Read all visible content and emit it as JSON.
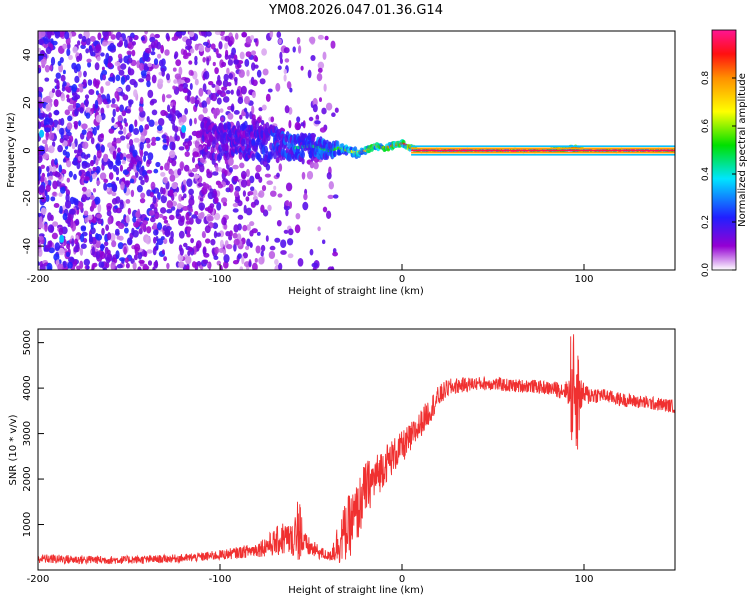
{
  "title": "YM08.2026.047.01.36.G14",
  "chart_data": [
    {
      "type": "heatmap",
      "name": "spectrogram",
      "xlabel": "Height of straight line (km)",
      "ylabel": "Frequency (Hz)",
      "xlim": [
        -200,
        150
      ],
      "ylim": [
        -50,
        50
      ],
      "xticks": [
        "-200",
        "-100",
        "0",
        "100"
      ],
      "xtick_values": [
        -200,
        -100,
        0,
        100
      ],
      "yticks": [
        "-40",
        "-20",
        "0",
        "20",
        "40"
      ],
      "ytick_values": [
        -40,
        -20,
        0,
        20,
        40
      ],
      "colorbar": {
        "label": "Normalized spectral amplitude",
        "range": [
          0,
          1
        ],
        "ticks": [
          "0.0",
          "0.2",
          "0.4",
          "0.6",
          "0.8"
        ],
        "tick_values": [
          0.0,
          0.2,
          0.4,
          0.6,
          0.8
        ]
      },
      "ridge": {
        "x": [
          -200,
          -150,
          -100,
          -80,
          -70,
          -60,
          -50,
          -40,
          -35,
          -30,
          -25,
          -20,
          -15,
          -10,
          -5,
          0,
          5,
          10,
          20,
          40,
          60,
          80,
          95,
          100,
          150
        ],
        "freq": [
          6,
          5,
          4,
          4,
          3,
          1,
          2,
          0,
          1,
          0,
          -1,
          0,
          2,
          1,
          2,
          3,
          1,
          0,
          0,
          0,
          0,
          0,
          1,
          0,
          0
        ],
        "amplitude": [
          0.25,
          0.25,
          0.3,
          0.35,
          0.4,
          0.45,
          0.45,
          0.5,
          0.55,
          0.6,
          0.7,
          0.75,
          0.8,
          0.8,
          0.85,
          0.9,
          0.95,
          1.0,
          1.0,
          1.0,
          1.0,
          1.0,
          0.9,
          1.0,
          1.0
        ],
        "spread_hz": [
          45,
          45,
          30,
          25,
          12,
          10,
          8,
          6,
          4,
          3,
          3,
          2,
          2,
          2,
          2,
          2,
          2,
          1,
          1,
          1,
          1,
          1,
          2,
          1,
          1
        ]
      },
      "noise_extent_x": [
        -200,
        -40
      ],
      "spikes": [
        {
          "x": -198,
          "freq": 7
        },
        {
          "x": -187,
          "freq": -37
        },
        {
          "x": -120,
          "freq": 9
        }
      ]
    },
    {
      "type": "line",
      "name": "snr",
      "xlabel": "Height of straight line (km)",
      "ylabel": "SNR (10 * v/v)",
      "xlim": [
        -200,
        150
      ],
      "ylim": [
        0,
        5300
      ],
      "xticks": [
        "-200",
        "-100",
        "0",
        "100"
      ],
      "xtick_values": [
        -200,
        -100,
        0,
        100
      ],
      "yticks": [
        "1000",
        "2000",
        "3000",
        "4000",
        "5000"
      ],
      "ytick_values": [
        1000,
        2000,
        3000,
        4000,
        5000
      ],
      "color": "#f03030",
      "series": [
        {
          "name": "SNR",
          "x": [
            -200,
            -180,
            -160,
            -140,
            -120,
            -110,
            -100,
            -90,
            -80,
            -70,
            -65,
            -60,
            -55,
            -50,
            -45,
            -40,
            -35,
            -30,
            -25,
            -20,
            -15,
            -10,
            -5,
            0,
            5,
            10,
            15,
            20,
            25,
            30,
            40,
            50,
            60,
            70,
            80,
            90,
            95,
            100,
            110,
            120,
            130,
            140,
            150
          ],
          "y": [
            250,
            230,
            220,
            230,
            260,
            290,
            330,
            380,
            450,
            600,
            700,
            650,
            600,
            480,
            380,
            300,
            600,
            900,
            1200,
            1800,
            2000,
            2300,
            2500,
            2700,
            2900,
            3200,
            3500,
            3800,
            4000,
            4050,
            4100,
            4100,
            4050,
            4050,
            4000,
            3950,
            3900,
            3850,
            3850,
            3750,
            3700,
            3650,
            3600
          ],
          "noise": [
            100,
            100,
            90,
            90,
            90,
            100,
            110,
            130,
            160,
            300,
            400,
            350,
            300,
            200,
            150,
            100,
            500,
            700,
            700,
            600,
            500,
            450,
            400,
            350,
            350,
            300,
            300,
            250,
            200,
            180,
            150,
            150,
            150,
            150,
            150,
            200,
            600,
            250,
            150,
            150,
            150,
            150,
            150
          ]
        }
      ]
    }
  ]
}
